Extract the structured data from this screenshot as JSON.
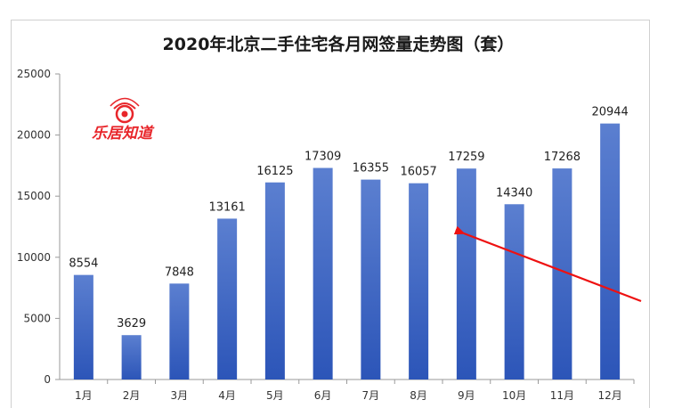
{
  "chart_data": {
    "type": "bar",
    "title": "2020年北京二手住宅各月网签量走势图（套）",
    "categories": [
      "1月",
      "2月",
      "3月",
      "4月",
      "5月",
      "6月",
      "7月",
      "8月",
      "9月",
      "10月",
      "11月",
      "12月"
    ],
    "values": [
      8554,
      3629,
      7848,
      13161,
      16125,
      17309,
      16355,
      16057,
      17259,
      14340,
      17268,
      20944
    ],
    "yticks": [
      0,
      5000,
      10000,
      15000,
      20000,
      25000
    ],
    "ylim": [
      0,
      25000
    ],
    "xlabel": "",
    "ylabel": "",
    "grid": false,
    "annotation": "red arrow pointing to the 9月 bar"
  },
  "watermark": {
    "text": "乐居知道"
  },
  "colors": {
    "bar_top": "#5b7fd0",
    "bar_bottom": "#2c55b8",
    "arrow": "#ee1111",
    "logo": "#e8262b"
  }
}
